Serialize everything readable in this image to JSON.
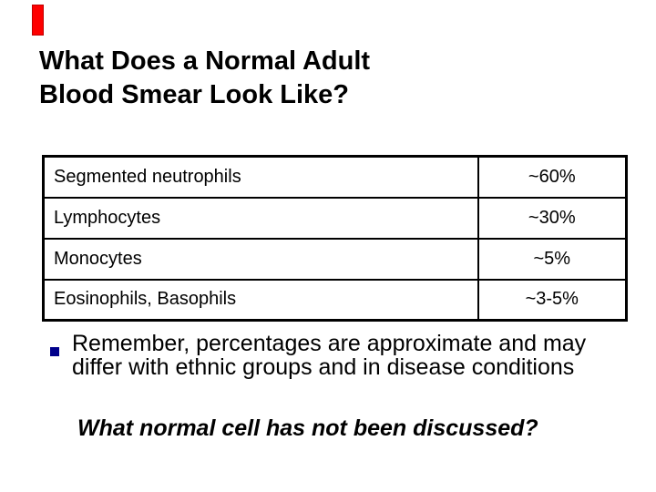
{
  "slide": {
    "accent_color": "#fe0000",
    "bullet_color": "#00008b",
    "title_line1": "What Does a Normal Adult",
    "title_line2": "Blood Smear Look Like?"
  },
  "table": {
    "rows": [
      {
        "label": "Segmented neutrophils",
        "value": "~60%"
      },
      {
        "label": "Lymphocytes",
        "value": "~30%"
      },
      {
        "label": "Monocytes",
        "value": "~5%"
      },
      {
        "label": "Eosinophils, Basophils",
        "value": "~3-5%"
      }
    ]
  },
  "notes": {
    "bullet_text": "Remember, percentages are approximate and may differ with ethnic groups and in disease conditions",
    "question": "What normal cell has not been discussed?"
  }
}
